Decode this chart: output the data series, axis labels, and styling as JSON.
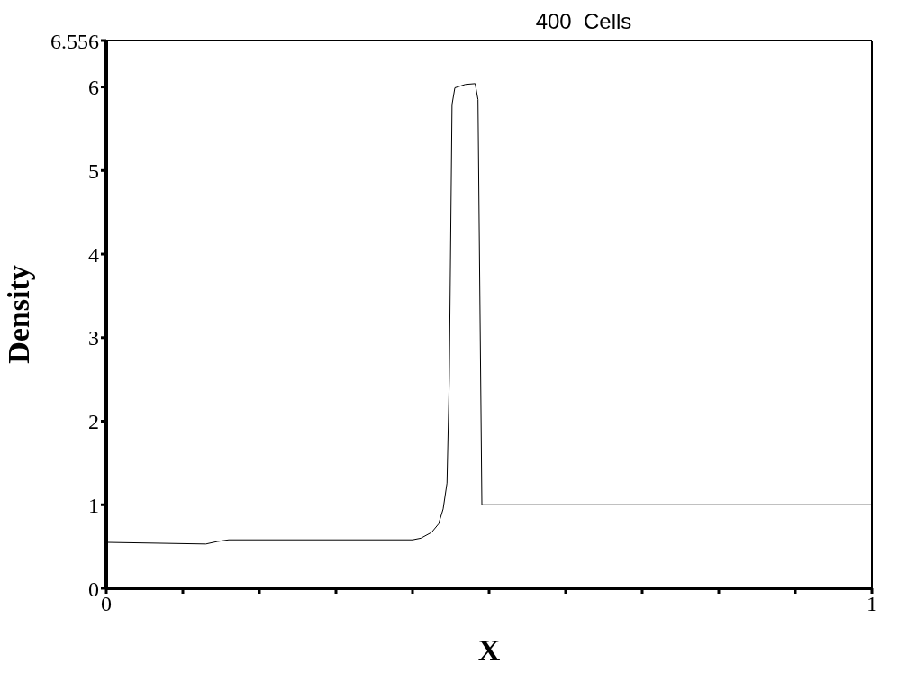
{
  "chart_data": {
    "type": "line",
    "title": "400  Cells",
    "xlabel": "X",
    "ylabel": "Density",
    "marker": "none",
    "line_style": "solid",
    "xlim": [
      0,
      1
    ],
    "ylim": [
      0,
      6.556
    ],
    "xticks": [
      0,
      {
        "value": 0.1,
        "label": null
      },
      {
        "value": 0.2,
        "label": null
      },
      {
        "value": 0.3,
        "label": null
      },
      {
        "value": 0.4,
        "label": null
      },
      {
        "value": 0.5,
        "label": null
      },
      {
        "value": 0.6,
        "label": null
      },
      {
        "value": 0.7,
        "label": null
      },
      {
        "value": 0.8,
        "label": null
      },
      {
        "value": 0.9,
        "label": null
      },
      1
    ],
    "yticks": [
      0,
      1,
      2,
      3,
      4,
      5,
      6,
      6.556
    ],
    "series": [
      {
        "color": "#000000",
        "x": [
          0,
          0.13,
          0.145,
          0.16,
          0.2,
          0.3,
          0.4,
          0.411,
          0.425,
          0.434,
          0.44,
          0.445,
          0.448,
          0.4516,
          0.4553,
          0.469,
          0.4818,
          0.4855,
          0.4906,
          0.5,
          0.6,
          0.8,
          1
        ],
        "values": [
          0.55,
          0.53,
          0.56,
          0.58,
          0.58,
          0.58,
          0.58,
          0.6,
          0.67,
          0.77,
          0.95,
          1.26,
          2.5,
          5.79,
          5.99,
          6.03,
          6.04,
          5.85,
          1.0,
          1.0,
          1.0,
          1.0,
          1.0
        ]
      }
    ]
  }
}
